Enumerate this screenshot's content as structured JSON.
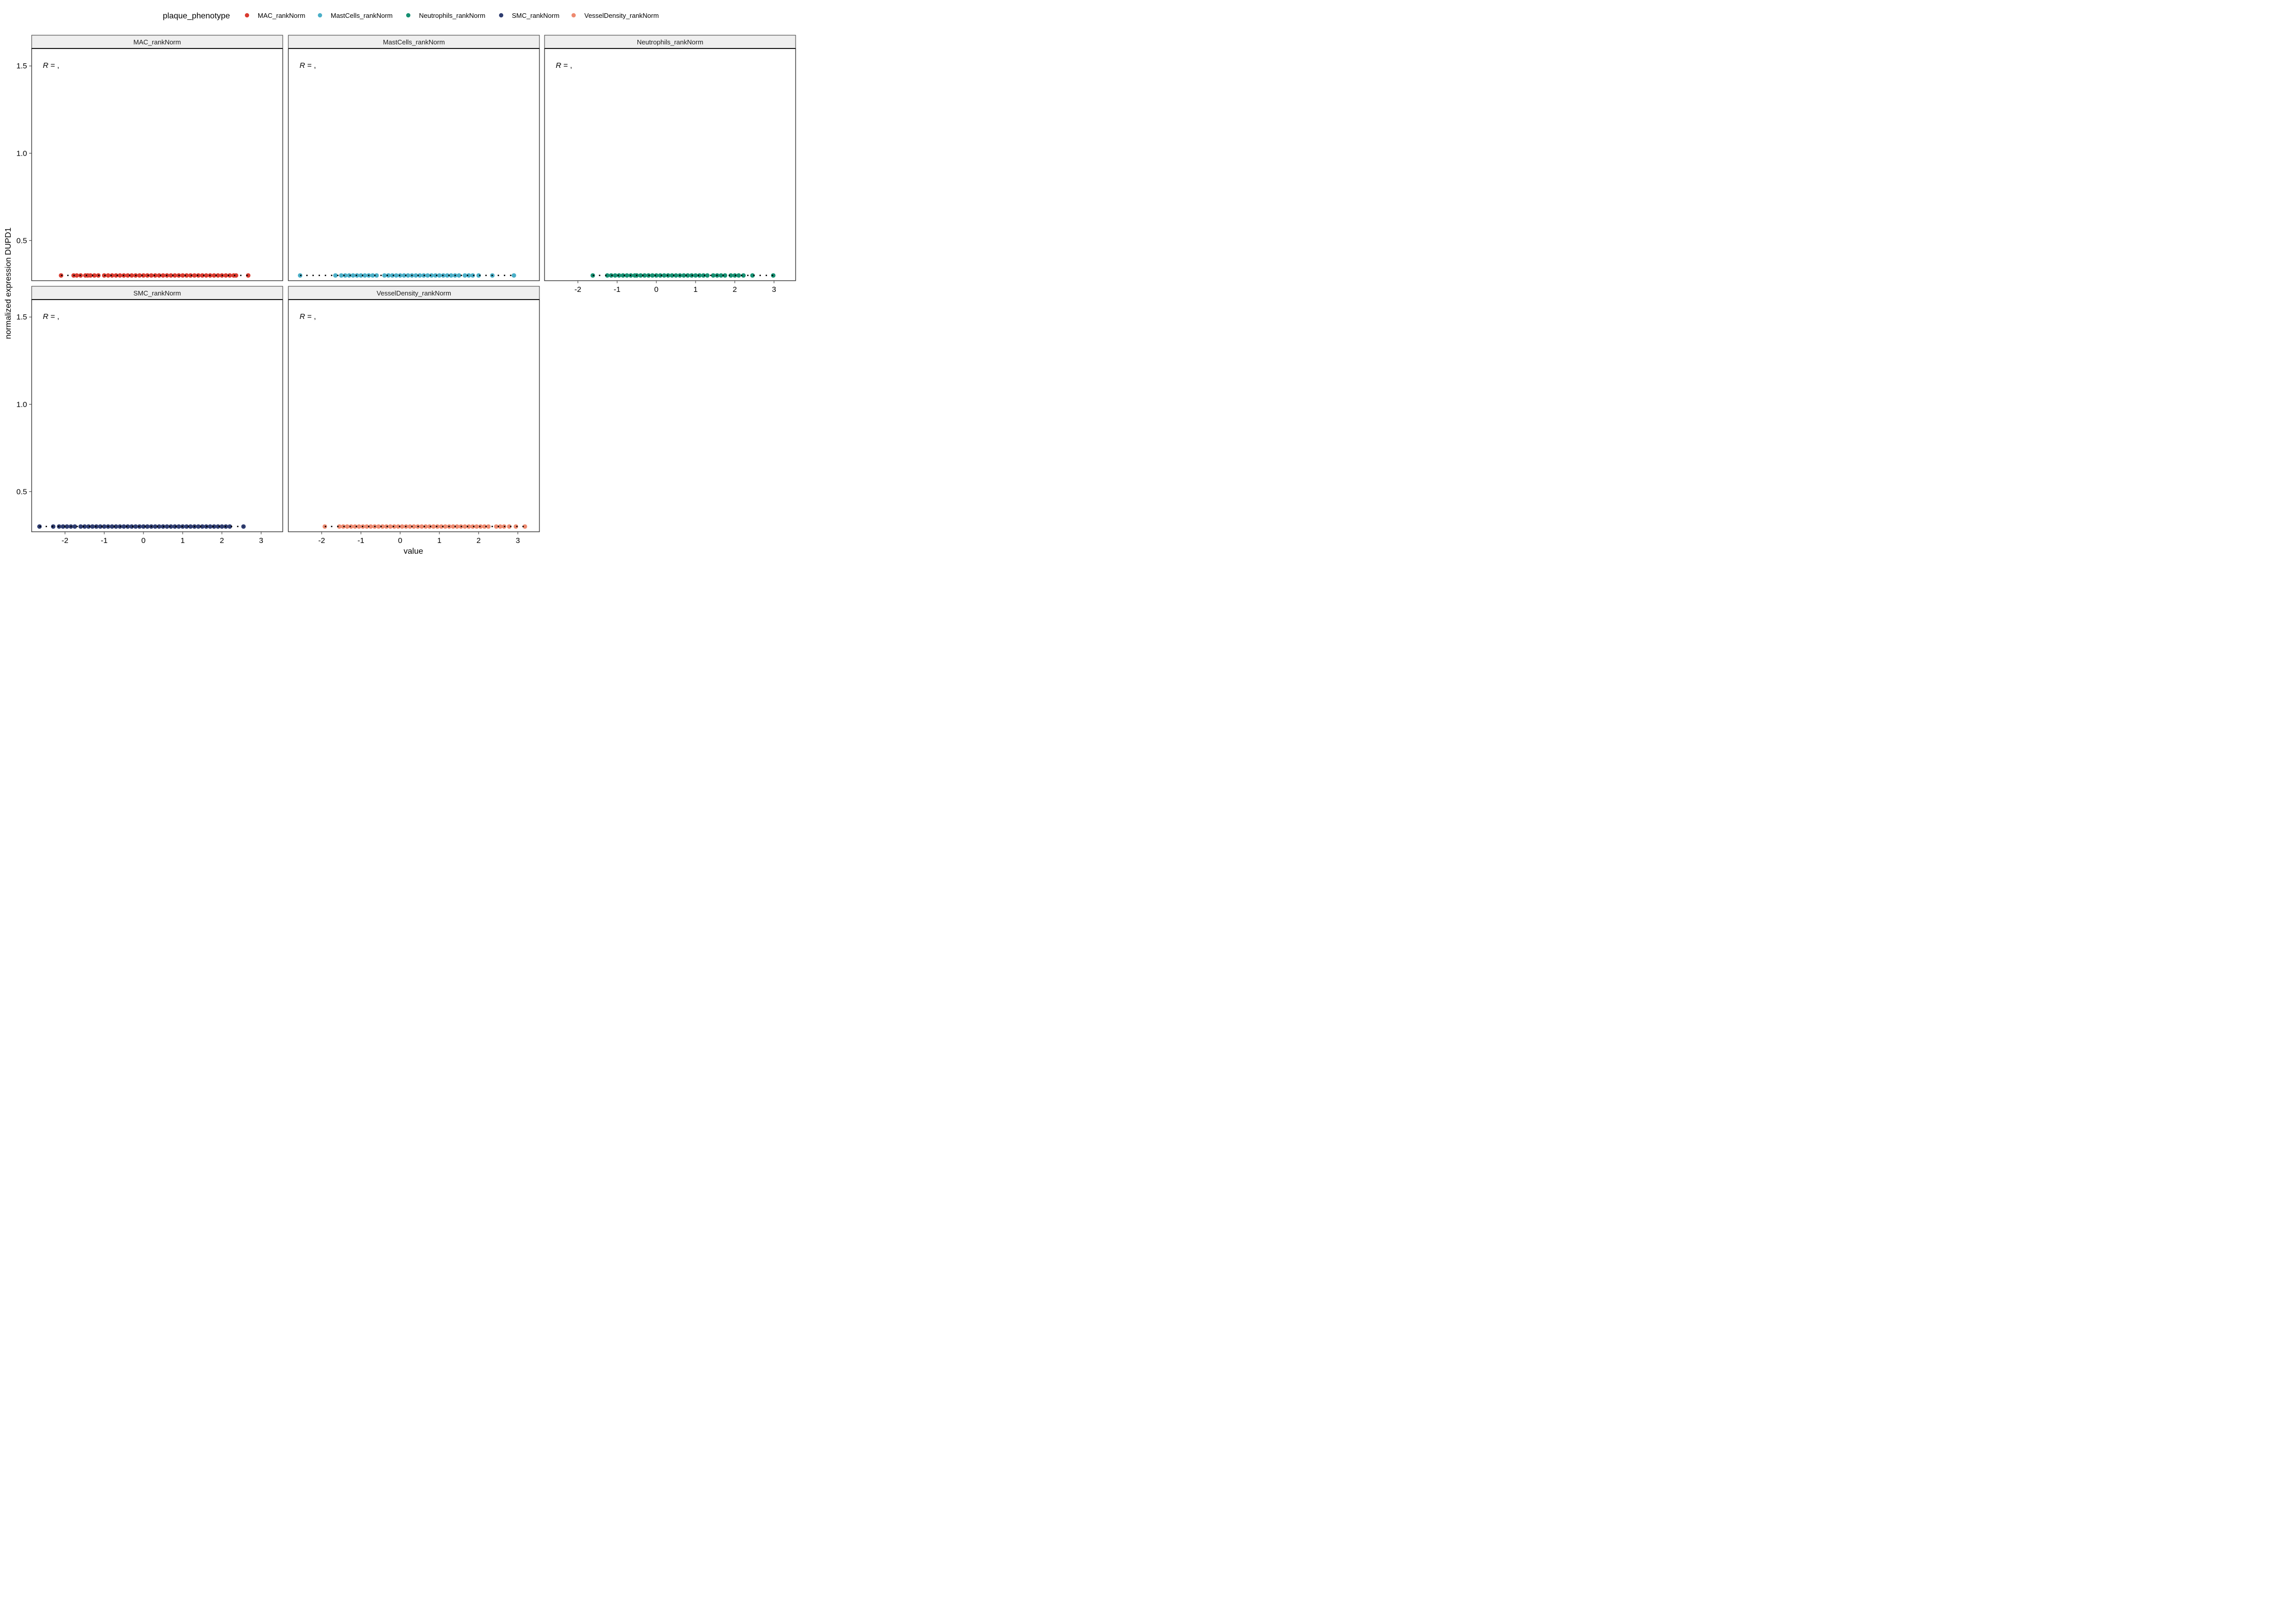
{
  "legend": {
    "title": "plaque_phenotype",
    "entries": [
      {
        "label": "MAC_rankNorm",
        "color": "#d93a2f"
      },
      {
        "label": "MastCells_rankNorm",
        "color": "#4aafc8"
      },
      {
        "label": "Neutrophils_rankNorm",
        "color": "#169072"
      },
      {
        "label": "SMC_rankNorm",
        "color": "#2f3d70"
      },
      {
        "label": "VesselDensity_rankNorm",
        "color": "#ee8a70"
      }
    ]
  },
  "chart_data": {
    "type": "scatter",
    "xlabel": "value",
    "ylabel": "normalized expression DUPD1",
    "xlim": [
      -2.85,
      3.55
    ],
    "ylim": [
      0.27,
      1.6
    ],
    "x_ticks": [
      "-2",
      "-1",
      "0",
      "1",
      "2",
      "3"
    ],
    "x_tick_values": [
      -2,
      -1,
      0,
      1,
      2,
      3
    ],
    "y_ticks": [
      "0.5",
      "1.0",
      "1.5"
    ],
    "y_tick_values": [
      0.5,
      1.0,
      1.5
    ],
    "grid": false,
    "legend_position": "top",
    "annotation": {
      "r_label": "R",
      "r_suffix": " = ,"
    },
    "panels": [
      {
        "name": "MAC_rankNorm",
        "color": "#d93a2f",
        "y": 0.3,
        "x": [
          -2.1,
          -1.78,
          -1.7,
          -1.6,
          -1.48,
          -1.42,
          -1.35,
          -1.25,
          -1.15,
          -1.0,
          -0.9,
          -0.8,
          -0.7,
          -0.6,
          -0.5,
          -0.4,
          -0.3,
          -0.2,
          -0.1,
          0.0,
          0.1,
          0.2,
          0.3,
          0.4,
          0.5,
          0.6,
          0.7,
          0.8,
          0.9,
          1.0,
          1.1,
          1.2,
          1.3,
          1.4,
          1.5,
          1.6,
          1.7,
          1.8,
          1.9,
          2.0,
          2.1,
          2.2,
          2.3,
          2.36,
          2.67
        ],
        "line": {
          "x1": -2.1,
          "x2": 2.67,
          "y": 0.3
        }
      },
      {
        "name": "MastCells_rankNorm",
        "color": "#4aafc8",
        "y": 0.3,
        "x": [
          -2.55,
          -1.65,
          -1.5,
          -1.4,
          -1.3,
          -1.2,
          -1.1,
          -1.0,
          -0.9,
          -0.8,
          -0.7,
          -0.6,
          -0.4,
          -0.3,
          -0.2,
          -0.1,
          0.0,
          0.1,
          0.2,
          0.3,
          0.4,
          0.5,
          0.6,
          0.7,
          0.8,
          0.9,
          1.0,
          1.1,
          1.2,
          1.3,
          1.4,
          1.5,
          1.65,
          1.75,
          1.85,
          2.0,
          2.35,
          2.9
        ],
        "line": {
          "x1": -2.55,
          "x2": 2.9,
          "y": 0.3
        }
      },
      {
        "name": "Neutrophils_rankNorm",
        "color": "#169072",
        "y": 0.3,
        "x": [
          -1.62,
          -1.25,
          -1.15,
          -1.05,
          -0.95,
          -0.85,
          -0.75,
          -0.65,
          -0.55,
          -0.5,
          -0.4,
          -0.3,
          -0.2,
          -0.1,
          0.0,
          0.1,
          0.2,
          0.3,
          0.4,
          0.5,
          0.6,
          0.7,
          0.8,
          0.9,
          1.0,
          1.1,
          1.2,
          1.3,
          1.45,
          1.55,
          1.65,
          1.75,
          1.9,
          2.0,
          2.1,
          2.22,
          2.45,
          2.98
        ],
        "line": {
          "x1": -1.62,
          "x2": 2.98,
          "y": 0.3
        }
      },
      {
        "name": "SMC_rankNorm",
        "color": "#2f3d70",
        "y": 0.3,
        "x": [
          -2.65,
          -2.3,
          -2.15,
          -2.05,
          -1.95,
          -1.85,
          -1.75,
          -1.6,
          -1.5,
          -1.4,
          -1.3,
          -1.2,
          -1.1,
          -1.0,
          -0.9,
          -0.8,
          -0.7,
          -0.6,
          -0.5,
          -0.4,
          -0.3,
          -0.2,
          -0.1,
          0.0,
          0.1,
          0.2,
          0.3,
          0.4,
          0.5,
          0.6,
          0.7,
          0.8,
          0.9,
          1.0,
          1.1,
          1.2,
          1.3,
          1.4,
          1.5,
          1.6,
          1.7,
          1.8,
          1.9,
          2.0,
          2.1,
          2.2,
          2.55
        ],
        "line": {
          "x1": -2.65,
          "x2": 2.55,
          "y": 0.3
        }
      },
      {
        "name": "VesselDensity_rankNorm",
        "color": "#ee8a70",
        "y": 0.3,
        "x": [
          -1.92,
          -1.55,
          -1.45,
          -1.35,
          -1.25,
          -1.15,
          -1.05,
          -0.95,
          -0.85,
          -0.75,
          -0.65,
          -0.55,
          -0.45,
          -0.35,
          -0.25,
          -0.15,
          -0.05,
          0.05,
          0.15,
          0.25,
          0.35,
          0.45,
          0.55,
          0.65,
          0.75,
          0.85,
          0.95,
          1.05,
          1.15,
          1.25,
          1.35,
          1.45,
          1.55,
          1.65,
          1.75,
          1.85,
          1.95,
          2.05,
          2.15,
          2.25,
          2.45,
          2.55,
          2.65,
          2.78,
          2.95,
          3.18
        ],
        "line": {
          "x1": -1.92,
          "x2": 3.18,
          "y": 0.3
        }
      }
    ]
  }
}
